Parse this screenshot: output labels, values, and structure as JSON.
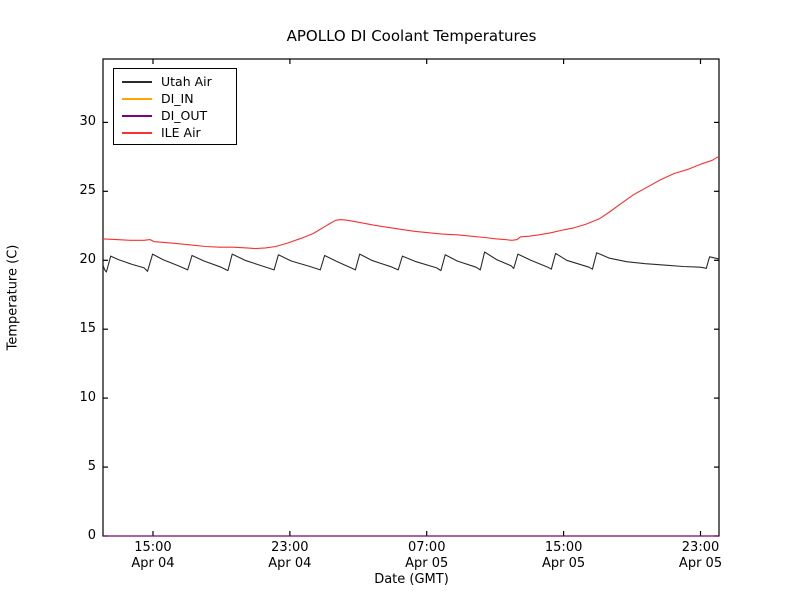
{
  "title": "APOLLO DI Coolant Temperatures",
  "axes": {
    "xlabel": "Date (GMT)",
    "ylabel": "Temperature (C)"
  },
  "legend": {
    "position": "upper left",
    "entries": [
      {
        "label": "Utah Air",
        "color": "#2b2b2b"
      },
      {
        "label": "DI_IN",
        "color": "#ffa500"
      },
      {
        "label": "DI_OUT",
        "color": "#800080"
      },
      {
        "label": "ILE Air",
        "color": "#f93131"
      }
    ]
  },
  "chart_data": {
    "type": "line",
    "title": "APOLLO DI Coolant Temperatures",
    "xlabel": "Date (GMT)",
    "ylabel": "Temperature (C)",
    "grid": false,
    "x_unit": "hours along axis (Apr 04 ~12:00 GMT at left edge to Apr 06 ~00:00 GMT at right edge)",
    "xlim": [
      0,
      36
    ],
    "ylim": [
      0,
      34.6
    ],
    "y_ticks": [
      0,
      5,
      10,
      15,
      20,
      25,
      30
    ],
    "x_ticks": [
      {
        "pos": 2.92,
        "time": "15:00",
        "date": "Apr 04"
      },
      {
        "pos": 10.92,
        "time": "23:00",
        "date": "Apr 04"
      },
      {
        "pos": 18.92,
        "time": "07:00",
        "date": "Apr 05"
      },
      {
        "pos": 26.92,
        "time": "15:00",
        "date": "Apr 05"
      },
      {
        "pos": 34.92,
        "time": "23:00",
        "date": "Apr 05"
      }
    ],
    "series": [
      {
        "name": "Utah Air",
        "color": "#2b2b2b",
        "points": [
          [
            0,
            19.65
          ],
          [
            0.1,
            19.3
          ],
          [
            0.2,
            19.15
          ],
          [
            0.45,
            20.3
          ],
          [
            0.9,
            20.05
          ],
          [
            1.7,
            19.7
          ],
          [
            2.4,
            19.45
          ],
          [
            2.6,
            19.2
          ],
          [
            2.9,
            20.45
          ],
          [
            3.5,
            20.05
          ],
          [
            4.4,
            19.6
          ],
          [
            4.95,
            19.3
          ],
          [
            5.2,
            20.35
          ],
          [
            5.9,
            19.95
          ],
          [
            6.9,
            19.5
          ],
          [
            7.3,
            19.25
          ],
          [
            7.55,
            20.45
          ],
          [
            8.3,
            20.0
          ],
          [
            9.4,
            19.55
          ],
          [
            10.0,
            19.3
          ],
          [
            10.25,
            20.4
          ],
          [
            11.0,
            19.95
          ],
          [
            12.1,
            19.55
          ],
          [
            12.7,
            19.3
          ],
          [
            12.95,
            20.35
          ],
          [
            13.7,
            19.9
          ],
          [
            14.5,
            19.45
          ],
          [
            14.75,
            19.3
          ],
          [
            15.0,
            20.45
          ],
          [
            15.7,
            20.0
          ],
          [
            16.9,
            19.5
          ],
          [
            17.25,
            19.3
          ],
          [
            17.5,
            20.3
          ],
          [
            18.3,
            19.9
          ],
          [
            19.5,
            19.45
          ],
          [
            19.75,
            19.25
          ],
          [
            20.0,
            20.4
          ],
          [
            20.7,
            19.95
          ],
          [
            21.8,
            19.5
          ],
          [
            22.05,
            19.3
          ],
          [
            22.3,
            20.6
          ],
          [
            23.0,
            20.05
          ],
          [
            23.85,
            19.6
          ],
          [
            24.0,
            19.4
          ],
          [
            24.25,
            20.45
          ],
          [
            25.0,
            20.0
          ],
          [
            26.0,
            19.5
          ],
          [
            26.2,
            19.35
          ],
          [
            26.45,
            20.5
          ],
          [
            27.1,
            20.0
          ],
          [
            28.4,
            19.5
          ],
          [
            28.6,
            19.35
          ],
          [
            28.85,
            20.55
          ],
          [
            29.6,
            20.15
          ],
          [
            30.6,
            19.9
          ],
          [
            31.7,
            19.75
          ],
          [
            32.8,
            19.65
          ],
          [
            33.9,
            19.55
          ],
          [
            34.9,
            19.5
          ],
          [
            35.15,
            19.45
          ],
          [
            35.25,
            19.4
          ],
          [
            35.45,
            20.25
          ],
          [
            35.8,
            20.15
          ],
          [
            36,
            20.1
          ]
        ]
      },
      {
        "name": "DI_IN",
        "color": "#ffa500",
        "points": [
          [
            0,
            0
          ],
          [
            36,
            0
          ]
        ]
      },
      {
        "name": "DI_OUT",
        "color": "#800080",
        "points": [
          [
            0,
            0
          ],
          [
            36,
            0
          ]
        ]
      },
      {
        "name": "ILE Air",
        "color": "#f93131",
        "points": [
          [
            0,
            21.55
          ],
          [
            0.8,
            21.5
          ],
          [
            1.6,
            21.45
          ],
          [
            2.4,
            21.45
          ],
          [
            2.75,
            21.5
          ],
          [
            3.0,
            21.35
          ],
          [
            3.6,
            21.3
          ],
          [
            4.4,
            21.2
          ],
          [
            5.2,
            21.1
          ],
          [
            6.0,
            21.0
          ],
          [
            6.8,
            20.95
          ],
          [
            7.6,
            20.95
          ],
          [
            8.4,
            20.9
          ],
          [
            8.9,
            20.85
          ],
          [
            9.5,
            20.9
          ],
          [
            10.1,
            21.0
          ],
          [
            10.8,
            21.25
          ],
          [
            11.6,
            21.6
          ],
          [
            12.3,
            21.95
          ],
          [
            12.9,
            22.4
          ],
          [
            13.3,
            22.7
          ],
          [
            13.6,
            22.9
          ],
          [
            13.9,
            22.95
          ],
          [
            14.3,
            22.9
          ],
          [
            15.0,
            22.75
          ],
          [
            15.8,
            22.55
          ],
          [
            16.6,
            22.4
          ],
          [
            17.4,
            22.25
          ],
          [
            18.2,
            22.1
          ],
          [
            19.0,
            22.0
          ],
          [
            19.8,
            21.9
          ],
          [
            20.7,
            21.85
          ],
          [
            21.5,
            21.75
          ],
          [
            22.3,
            21.65
          ],
          [
            23.0,
            21.55
          ],
          [
            23.5,
            21.5
          ],
          [
            23.9,
            21.45
          ],
          [
            24.2,
            21.5
          ],
          [
            24.4,
            21.7
          ],
          [
            24.9,
            21.75
          ],
          [
            25.5,
            21.85
          ],
          [
            26.2,
            22.0
          ],
          [
            26.9,
            22.2
          ],
          [
            27.5,
            22.35
          ],
          [
            28.2,
            22.6
          ],
          [
            29.0,
            23.0
          ],
          [
            29.6,
            23.5
          ],
          [
            30.2,
            24.05
          ],
          [
            31.0,
            24.75
          ],
          [
            31.8,
            25.3
          ],
          [
            32.6,
            25.85
          ],
          [
            33.4,
            26.3
          ],
          [
            34.2,
            26.6
          ],
          [
            35.0,
            27.0
          ],
          [
            35.6,
            27.25
          ],
          [
            36,
            27.55
          ]
        ]
      }
    ]
  }
}
